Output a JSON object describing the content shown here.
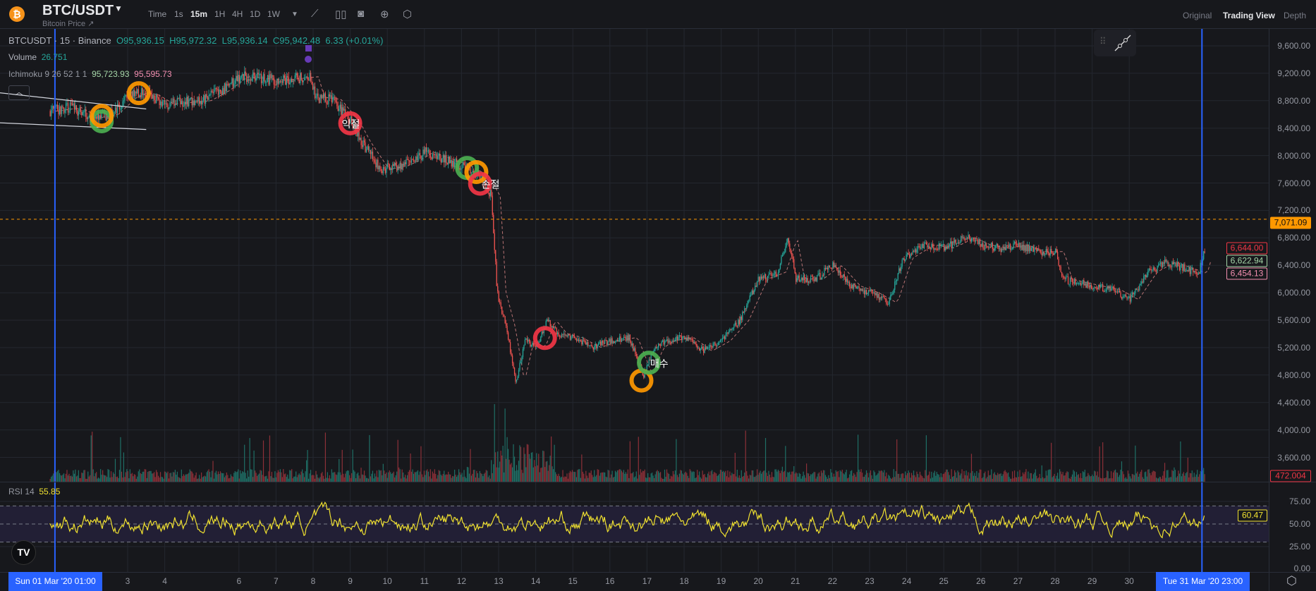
{
  "header": {
    "pair": "BTC/USDT",
    "subtitle": "Bitcoin Price ↗",
    "timeframes": [
      "Time",
      "1s",
      "15m",
      "1H",
      "4H",
      "1D",
      "1W"
    ],
    "active_timeframe": "15m",
    "toolbar_icons": [
      "chevron-down-icon",
      "indicator-icon",
      "candle-type-icon",
      "camera-icon",
      "plus-circle-icon",
      "settings-hex-icon"
    ],
    "views": [
      "Original",
      "Trading View",
      "Depth"
    ],
    "active_view": "Trading View"
  },
  "legend": {
    "symbol": "BTCUSDT · 15 · Binance",
    "open": "O95,936.15",
    "high": "H95,972.32",
    "low": "L95,936.14",
    "close": "C95,942.48",
    "change": "6.33 (+0.01%)",
    "volume_label": "Volume",
    "volume_value": "26.751",
    "ichimoku_label": "Ichimoku 9 26 52 1 1",
    "ichimoku_v1": "95,723.93",
    "ichimoku_v2": "95,595.73",
    "rsi_label": "RSI 14",
    "rsi_value": "55.85"
  },
  "price_axis": {
    "ticks": [
      "9,600.00",
      "9,200.00",
      "8,800.00",
      "8,400.00",
      "8,000.00",
      "7,600.00",
      "7,200.00",
      "6,800.00",
      "6,400.00",
      "6,000.00",
      "5,600.00",
      "5,200.00",
      "4,800.00",
      "4,400.00",
      "4,000.00",
      "3,600.00"
    ],
    "labels": {
      "current": "7,071.09",
      "high_line": "6,644.00",
      "mid_line": "6,622.94",
      "low_line": "6,454.13",
      "volume": "472.004"
    }
  },
  "rsi_axis": {
    "ticks": [
      "75.00",
      "50.00",
      "25.00",
      "0.00"
    ],
    "current": "60.47"
  },
  "time_axis": {
    "ticks": [
      "3",
      "4",
      "6",
      "7",
      "8",
      "9",
      "10",
      "11",
      "12",
      "13",
      "14",
      "15",
      "16",
      "17",
      "18",
      "19",
      "20",
      "21",
      "22",
      "23",
      "24",
      "25",
      "26",
      "27",
      "28",
      "29",
      "30"
    ],
    "start_label": "Sun 01 Mar '20   01:00",
    "end_label": "Tue 31 Mar '20   23:00"
  },
  "colors": {
    "up": "#26a69a",
    "down": "#ef5350",
    "rsi": "#f0e130",
    "cursor": "#2962ff",
    "current_price": "#ff9800"
  },
  "chart_data": {
    "type": "candlestick",
    "x_unit": "day of March 2020",
    "ylim": [
      3500,
      9700
    ],
    "close_path": [
      [
        0.9,
        8650
      ],
      [
        1.5,
        8700
      ],
      [
        2,
        8550
      ],
      [
        2.5,
        8600
      ],
      [
        3,
        8850
      ],
      [
        3.3,
        8920
      ],
      [
        3.6,
        8880
      ],
      [
        4,
        8750
      ],
      [
        5,
        8800
      ],
      [
        5.5,
        8950
      ],
      [
        6,
        9150
      ],
      [
        7,
        9100
      ],
      [
        7.9,
        9150
      ],
      [
        8.05,
        8850
      ],
      [
        8.5,
        8820
      ],
      [
        9,
        8500
      ],
      [
        9.3,
        8200
      ],
      [
        9.8,
        7800
      ],
      [
        10.3,
        7850
      ],
      [
        10.7,
        7950
      ],
      [
        11,
        8050
      ],
      [
        11.5,
        7950
      ],
      [
        12,
        7850
      ],
      [
        12.5,
        7700
      ],
      [
        12.8,
        7400
      ],
      [
        12.95,
        6000
      ],
      [
        13.2,
        5500
      ],
      [
        13.45,
        4700
      ],
      [
        13.7,
        5300
      ],
      [
        14,
        5200
      ],
      [
        14.3,
        5600
      ],
      [
        14.6,
        5400
      ],
      [
        15,
        5350
      ],
      [
        15.5,
        5200
      ],
      [
        16,
        5300
      ],
      [
        16.5,
        5350
      ],
      [
        16.9,
        4800
      ],
      [
        17.2,
        5200
      ],
      [
        17.5,
        5300
      ],
      [
        18,
        5350
      ],
      [
        18.5,
        5150
      ],
      [
        19,
        5300
      ],
      [
        19.5,
        5600
      ],
      [
        20,
        6200
      ],
      [
        20.5,
        6300
      ],
      [
        20.8,
        6800
      ],
      [
        21,
        6200
      ],
      [
        21.5,
        6200
      ],
      [
        22,
        6400
      ],
      [
        22.5,
        6100
      ],
      [
        23,
        6000
      ],
      [
        23.5,
        5850
      ],
      [
        23.9,
        6500
      ],
      [
        24.5,
        6700
      ],
      [
        25,
        6650
      ],
      [
        25.6,
        6800
      ],
      [
        26,
        6700
      ],
      [
        26.5,
        6650
      ],
      [
        27,
        6700
      ],
      [
        27.5,
        6600
      ],
      [
        28,
        6600
      ],
      [
        28.2,
        6200
      ],
      [
        29,
        6100
      ],
      [
        29.5,
        6050
      ],
      [
        30,
        5900
      ],
      [
        30.5,
        6300
      ],
      [
        31,
        6450
      ],
      [
        31.5,
        6350
      ],
      [
        31.85,
        6280
      ],
      [
        32.05,
        6650
      ]
    ],
    "current_price_line": 7071.09,
    "trendlines": [
      [
        [
          0.9,
          8920
        ],
        [
          3.5,
          8680
        ]
      ],
      [
        [
          0.9,
          8480
        ],
        [
          3.5,
          8380
        ]
      ]
    ],
    "cursor_lines": [
      "Sun 01 Mar '20 01:00",
      "Tue 31 Mar '20 23:00"
    ],
    "markers": [
      {
        "day": 2.3,
        "price": 8500,
        "color": "#4caf50",
        "label": ""
      },
      {
        "day": 2.3,
        "price": 8580,
        "color": "#ff9800",
        "label": ""
      },
      {
        "day": 3.3,
        "price": 8910,
        "color": "#ff9800",
        "label": ""
      },
      {
        "day": 9.0,
        "price": 8470,
        "color": "#f23645",
        "label": "익절"
      },
      {
        "day": 12.15,
        "price": 7820,
        "color": "#4caf50",
        "label": ""
      },
      {
        "day": 12.4,
        "price": 7760,
        "color": "#ff9800",
        "label": ""
      },
      {
        "day": 12.5,
        "price": 7590,
        "color": "#f23645",
        "label": "손절"
      },
      {
        "day": 14.25,
        "price": 5340,
        "color": "#f23645",
        "label": ""
      },
      {
        "day": 16.85,
        "price": 4720,
        "color": "#ff9800",
        "label": ""
      },
      {
        "day": 17.05,
        "price": 4980,
        "color": "#4caf50",
        "label": "매수"
      }
    ],
    "rsi": {
      "period": 14,
      "overbought": 70,
      "oversold": 30,
      "ylim": [
        0,
        100
      ]
    }
  }
}
